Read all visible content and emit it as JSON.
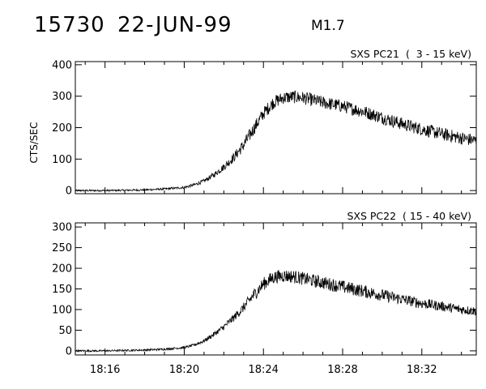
{
  "header": {
    "event_id": "15730",
    "date": "22-JUN-99",
    "flare_class": "M1.7"
  },
  "chart_data": [
    {
      "type": "line",
      "title": "SXS PC21  (  3 - 15 keV)",
      "ylabel": "CTS/SEC",
      "xlabel": "",
      "y_ticks": [
        "0",
        "100",
        "200",
        "300",
        "400"
      ],
      "y_tick_values": [
        0,
        100,
        200,
        300,
        400
      ],
      "ylim": [
        -10,
        410
      ],
      "xlim": [
        "18:14:30",
        "18:34:45"
      ],
      "x_tick_labels_shown": false,
      "grid": false,
      "noise_amplitude": 18,
      "series": [
        {
          "x": [
            "18:14:30",
            "18:16:00",
            "18:18:00",
            "18:19:00",
            "18:20:00",
            "18:20:30",
            "18:21:00",
            "18:21:30",
            "18:22:00",
            "18:22:30",
            "18:23:00",
            "18:23:30",
            "18:24:00",
            "18:24:30",
            "18:25:00",
            "18:25:30",
            "18:26:00",
            "18:27:00",
            "18:28:00",
            "18:29:00",
            "18:30:00",
            "18:31:00",
            "18:32:00",
            "18:33:00",
            "18:34:00",
            "18:34:45"
          ],
          "y": [
            0,
            0,
            2,
            5,
            10,
            18,
            30,
            50,
            75,
            105,
            145,
            195,
            245,
            280,
            295,
            298,
            295,
            280,
            268,
            252,
            232,
            212,
            195,
            180,
            167,
            158
          ]
        }
      ]
    },
    {
      "type": "line",
      "title": "SXS PC22  ( 15 - 40 keV)",
      "ylabel": "",
      "xlabel": "",
      "y_ticks": [
        "0",
        "50",
        "100",
        "150",
        "200",
        "250",
        "300"
      ],
      "y_tick_values": [
        0,
        50,
        100,
        150,
        200,
        250,
        300
      ],
      "ylim": [
        -10,
        310
      ],
      "x_ticks": [
        "18:16",
        "18:20",
        "18:24",
        "18:28",
        "18:32"
      ],
      "xlim": [
        "18:14:30",
        "18:34:45"
      ],
      "grid": false,
      "noise_amplitude": 14,
      "series": [
        {
          "x": [
            "18:14:30",
            "18:16:00",
            "18:18:00",
            "18:19:00",
            "18:20:00",
            "18:20:30",
            "18:21:00",
            "18:21:30",
            "18:22:00",
            "18:22:30",
            "18:23:00",
            "18:23:30",
            "18:24:00",
            "18:24:30",
            "18:25:00",
            "18:25:30",
            "18:26:00",
            "18:27:00",
            "18:28:00",
            "18:29:00",
            "18:30:00",
            "18:31:00",
            "18:32:00",
            "18:33:00",
            "18:34:00",
            "18:34:45"
          ],
          "y": [
            0,
            0,
            2,
            4,
            8,
            14,
            24,
            40,
            58,
            80,
            105,
            135,
            162,
            178,
            182,
            180,
            175,
            165,
            155,
            145,
            135,
            125,
            115,
            108,
            100,
            96
          ]
        }
      ]
    }
  ]
}
